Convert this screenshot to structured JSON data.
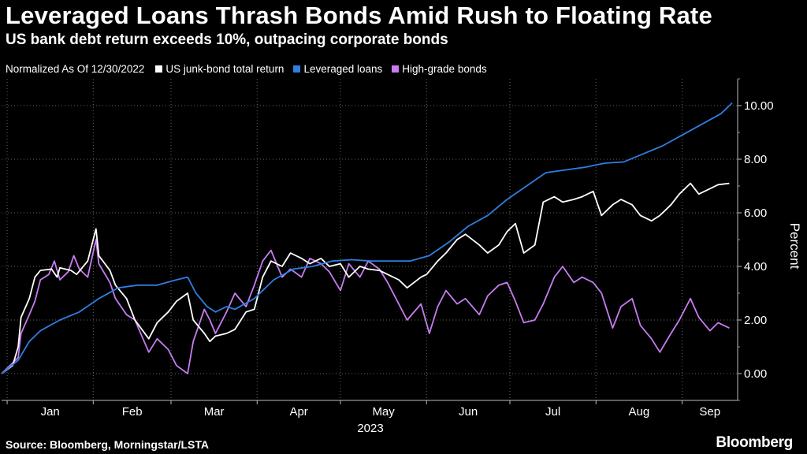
{
  "header": {
    "title": "Leveraged Loans Thrash Bonds Amid Rush to Floating Rate",
    "subtitle": "US bank debt return exceeds 10%, outpacing corporate bonds"
  },
  "legend": {
    "note": "Normalized As Of 12/30/2022",
    "items": [
      {
        "label": "US junk-bond total return",
        "color": "#ffffff"
      },
      {
        "label": "Leveraged loans",
        "color": "#2f7ee0"
      },
      {
        "label": "High-grade bonds",
        "color": "#c77cf0"
      }
    ]
  },
  "footer": {
    "source": "Source: Bloomberg, Morningstar/LSTA",
    "brand": "Bloomberg"
  },
  "chart_data": {
    "type": "line",
    "ylabel": "Percent",
    "xlabel": "2023",
    "ylim": [
      -1,
      11
    ],
    "yticks": [
      0,
      2,
      4,
      6,
      8,
      10
    ],
    "ytick_labels": [
      "0.00",
      "2.00",
      "4.00",
      "6.00",
      "8.00",
      "10.00"
    ],
    "x_categories": [
      "Jan",
      "Feb",
      "Mar",
      "Apr",
      "May",
      "Jun",
      "Jul",
      "Aug",
      "Sep"
    ],
    "grid": true,
    "legend_position": "top-left",
    "series": [
      {
        "name": "US junk-bond total return",
        "color": "#ffffff",
        "points": [
          [
            "2022-12-30",
            0.0
          ],
          [
            "2023-01-03",
            0.3
          ],
          [
            "2023-01-05",
            1.0
          ],
          [
            "2023-01-06",
            2.1
          ],
          [
            "2023-01-09",
            2.8
          ],
          [
            "2023-01-11",
            3.6
          ],
          [
            "2023-01-13",
            3.85
          ],
          [
            "2023-01-17",
            3.9
          ],
          [
            "2023-01-19",
            3.6
          ],
          [
            "2023-01-20",
            3.95
          ],
          [
            "2023-01-24",
            3.85
          ],
          [
            "2023-01-26",
            3.7
          ],
          [
            "2023-01-30",
            4.2
          ],
          [
            "2023-02-02",
            5.4
          ],
          [
            "2023-02-03",
            4.4
          ],
          [
            "2023-02-07",
            3.85
          ],
          [
            "2023-02-09",
            3.3
          ],
          [
            "2023-02-13",
            2.8
          ],
          [
            "2023-02-16",
            2.0
          ],
          [
            "2023-02-21",
            1.3
          ],
          [
            "2023-02-24",
            1.9
          ],
          [
            "2023-02-28",
            2.3
          ],
          [
            "2023-03-03",
            2.7
          ],
          [
            "2023-03-07",
            3.0
          ],
          [
            "2023-03-09",
            2.0
          ],
          [
            "2023-03-13",
            1.5
          ],
          [
            "2023-03-15",
            1.2
          ],
          [
            "2023-03-17",
            1.4
          ],
          [
            "2023-03-21",
            1.5
          ],
          [
            "2023-03-24",
            1.65
          ],
          [
            "2023-03-28",
            2.3
          ],
          [
            "2023-03-31",
            2.4
          ],
          [
            "2023-04-03",
            3.6
          ],
          [
            "2023-04-06",
            4.2
          ],
          [
            "2023-04-10",
            4.0
          ],
          [
            "2023-04-13",
            4.5
          ],
          [
            "2023-04-17",
            4.3
          ],
          [
            "2023-04-20",
            4.1
          ],
          [
            "2023-04-24",
            4.3
          ],
          [
            "2023-04-27",
            4.0
          ],
          [
            "2023-05-01",
            4.1
          ],
          [
            "2023-05-04",
            3.6
          ],
          [
            "2023-05-08",
            4.0
          ],
          [
            "2023-05-11",
            3.9
          ],
          [
            "2023-05-15",
            3.85
          ],
          [
            "2023-05-18",
            3.7
          ],
          [
            "2023-05-22",
            3.5
          ],
          [
            "2023-05-25",
            3.2
          ],
          [
            "2023-05-30",
            3.6
          ],
          [
            "2023-06-01",
            3.7
          ],
          [
            "2023-06-05",
            4.2
          ],
          [
            "2023-06-08",
            4.5
          ],
          [
            "2023-06-12",
            5.0
          ],
          [
            "2023-06-15",
            5.2
          ],
          [
            "2023-06-20",
            4.8
          ],
          [
            "2023-06-23",
            4.5
          ],
          [
            "2023-06-27",
            4.8
          ],
          [
            "2023-06-30",
            5.3
          ],
          [
            "2023-07-03",
            5.6
          ],
          [
            "2023-07-06",
            4.5
          ],
          [
            "2023-07-10",
            4.8
          ],
          [
            "2023-07-13",
            6.4
          ],
          [
            "2023-07-17",
            6.6
          ],
          [
            "2023-07-20",
            6.4
          ],
          [
            "2023-07-24",
            6.5
          ],
          [
            "2023-07-27",
            6.6
          ],
          [
            "2023-07-31",
            6.8
          ],
          [
            "2023-08-03",
            5.9
          ],
          [
            "2023-08-07",
            6.3
          ],
          [
            "2023-08-10",
            6.5
          ],
          [
            "2023-08-14",
            6.3
          ],
          [
            "2023-08-17",
            5.9
          ],
          [
            "2023-08-21",
            5.7
          ],
          [
            "2023-08-24",
            5.9
          ],
          [
            "2023-08-28",
            6.3
          ],
          [
            "2023-08-31",
            6.7
          ],
          [
            "2023-09-04",
            7.1
          ],
          [
            "2023-09-07",
            6.7
          ],
          [
            "2023-09-11",
            6.9
          ],
          [
            "2023-09-14",
            7.05
          ],
          [
            "2023-09-18",
            7.1
          ]
        ]
      },
      {
        "name": "Leveraged loans",
        "color": "#2f7ee0",
        "points": [
          [
            "2022-12-30",
            0.0
          ],
          [
            "2023-01-05",
            0.5
          ],
          [
            "2023-01-09",
            1.2
          ],
          [
            "2023-01-13",
            1.6
          ],
          [
            "2023-01-20",
            2.0
          ],
          [
            "2023-01-27",
            2.3
          ],
          [
            "2023-02-03",
            2.8
          ],
          [
            "2023-02-10",
            3.2
          ],
          [
            "2023-02-17",
            3.3
          ],
          [
            "2023-02-24",
            3.3
          ],
          [
            "2023-03-03",
            3.5
          ],
          [
            "2023-03-07",
            3.6
          ],
          [
            "2023-03-10",
            3.0
          ],
          [
            "2023-03-14",
            2.5
          ],
          [
            "2023-03-17",
            2.3
          ],
          [
            "2023-03-21",
            2.5
          ],
          [
            "2023-03-24",
            2.4
          ],
          [
            "2023-03-31",
            2.8
          ],
          [
            "2023-04-07",
            3.5
          ],
          [
            "2023-04-14",
            3.9
          ],
          [
            "2023-04-21",
            4.0
          ],
          [
            "2023-04-28",
            4.2
          ],
          [
            "2023-05-05",
            4.25
          ],
          [
            "2023-05-12",
            4.2
          ],
          [
            "2023-05-19",
            4.2
          ],
          [
            "2023-05-26",
            4.2
          ],
          [
            "2023-06-02",
            4.4
          ],
          [
            "2023-06-09",
            4.9
          ],
          [
            "2023-06-16",
            5.5
          ],
          [
            "2023-06-23",
            5.9
          ],
          [
            "2023-06-30",
            6.5
          ],
          [
            "2023-07-07",
            7.0
          ],
          [
            "2023-07-14",
            7.5
          ],
          [
            "2023-07-21",
            7.6
          ],
          [
            "2023-07-28",
            7.7
          ],
          [
            "2023-08-04",
            7.85
          ],
          [
            "2023-08-11",
            7.9
          ],
          [
            "2023-08-18",
            8.2
          ],
          [
            "2023-08-25",
            8.5
          ],
          [
            "2023-09-01",
            8.9
          ],
          [
            "2023-09-08",
            9.3
          ],
          [
            "2023-09-15",
            9.7
          ],
          [
            "2023-09-19",
            10.1
          ]
        ]
      },
      {
        "name": "High-grade bonds",
        "color": "#c77cf0",
        "points": [
          [
            "2022-12-30",
            0.0
          ],
          [
            "2023-01-03",
            0.4
          ],
          [
            "2023-01-05",
            0.6
          ],
          [
            "2023-01-06",
            1.5
          ],
          [
            "2023-01-09",
            2.2
          ],
          [
            "2023-01-11",
            2.7
          ],
          [
            "2023-01-13",
            3.5
          ],
          [
            "2023-01-16",
            3.7
          ],
          [
            "2023-01-18",
            4.2
          ],
          [
            "2023-01-20",
            3.5
          ],
          [
            "2023-01-23",
            3.8
          ],
          [
            "2023-01-25",
            4.4
          ],
          [
            "2023-01-27",
            3.9
          ],
          [
            "2023-01-30",
            3.6
          ],
          [
            "2023-02-02",
            5.0
          ],
          [
            "2023-02-03",
            4.1
          ],
          [
            "2023-02-07",
            3.4
          ],
          [
            "2023-02-09",
            2.8
          ],
          [
            "2023-02-13",
            2.2
          ],
          [
            "2023-02-16",
            2.0
          ],
          [
            "2023-02-21",
            0.8
          ],
          [
            "2023-02-24",
            1.3
          ],
          [
            "2023-02-28",
            0.9
          ],
          [
            "2023-03-03",
            0.3
          ],
          [
            "2023-03-07",
            0.0
          ],
          [
            "2023-03-09",
            1.2
          ],
          [
            "2023-03-13",
            2.4
          ],
          [
            "2023-03-15",
            2.0
          ],
          [
            "2023-03-17",
            1.5
          ],
          [
            "2023-03-21",
            2.3
          ],
          [
            "2023-03-24",
            3.0
          ],
          [
            "2023-03-28",
            2.5
          ],
          [
            "2023-03-31",
            3.3
          ],
          [
            "2023-04-03",
            4.2
          ],
          [
            "2023-04-06",
            4.6
          ],
          [
            "2023-04-10",
            3.6
          ],
          [
            "2023-04-13",
            3.9
          ],
          [
            "2023-04-17",
            3.6
          ],
          [
            "2023-04-20",
            4.3
          ],
          [
            "2023-04-24",
            4.1
          ],
          [
            "2023-04-27",
            3.8
          ],
          [
            "2023-05-01",
            3.1
          ],
          [
            "2023-05-04",
            4.1
          ],
          [
            "2023-05-08",
            3.6
          ],
          [
            "2023-05-11",
            4.2
          ],
          [
            "2023-05-15",
            3.9
          ],
          [
            "2023-05-18",
            3.4
          ],
          [
            "2023-05-22",
            2.6
          ],
          [
            "2023-05-25",
            2.0
          ],
          [
            "2023-05-30",
            2.6
          ],
          [
            "2023-06-02",
            1.5
          ],
          [
            "2023-06-05",
            2.5
          ],
          [
            "2023-06-08",
            3.1
          ],
          [
            "2023-06-12",
            2.6
          ],
          [
            "2023-06-15",
            2.8
          ],
          [
            "2023-06-20",
            2.2
          ],
          [
            "2023-06-23",
            2.9
          ],
          [
            "2023-06-27",
            3.3
          ],
          [
            "2023-06-30",
            3.4
          ],
          [
            "2023-07-03",
            2.7
          ],
          [
            "2023-07-06",
            1.9
          ],
          [
            "2023-07-10",
            2.0
          ],
          [
            "2023-07-13",
            2.6
          ],
          [
            "2023-07-17",
            3.6
          ],
          [
            "2023-07-20",
            4.0
          ],
          [
            "2023-07-24",
            3.4
          ],
          [
            "2023-07-27",
            3.6
          ],
          [
            "2023-07-31",
            3.4
          ],
          [
            "2023-08-03",
            3.0
          ],
          [
            "2023-08-07",
            1.7
          ],
          [
            "2023-08-10",
            2.5
          ],
          [
            "2023-08-14",
            2.8
          ],
          [
            "2023-08-17",
            1.8
          ],
          [
            "2023-08-21",
            1.3
          ],
          [
            "2023-08-24",
            0.8
          ],
          [
            "2023-08-28",
            1.5
          ],
          [
            "2023-08-31",
            2.0
          ],
          [
            "2023-09-04",
            2.8
          ],
          [
            "2023-09-07",
            2.1
          ],
          [
            "2023-09-11",
            1.6
          ],
          [
            "2023-09-14",
            1.9
          ],
          [
            "2023-09-18",
            1.7
          ]
        ]
      }
    ]
  }
}
